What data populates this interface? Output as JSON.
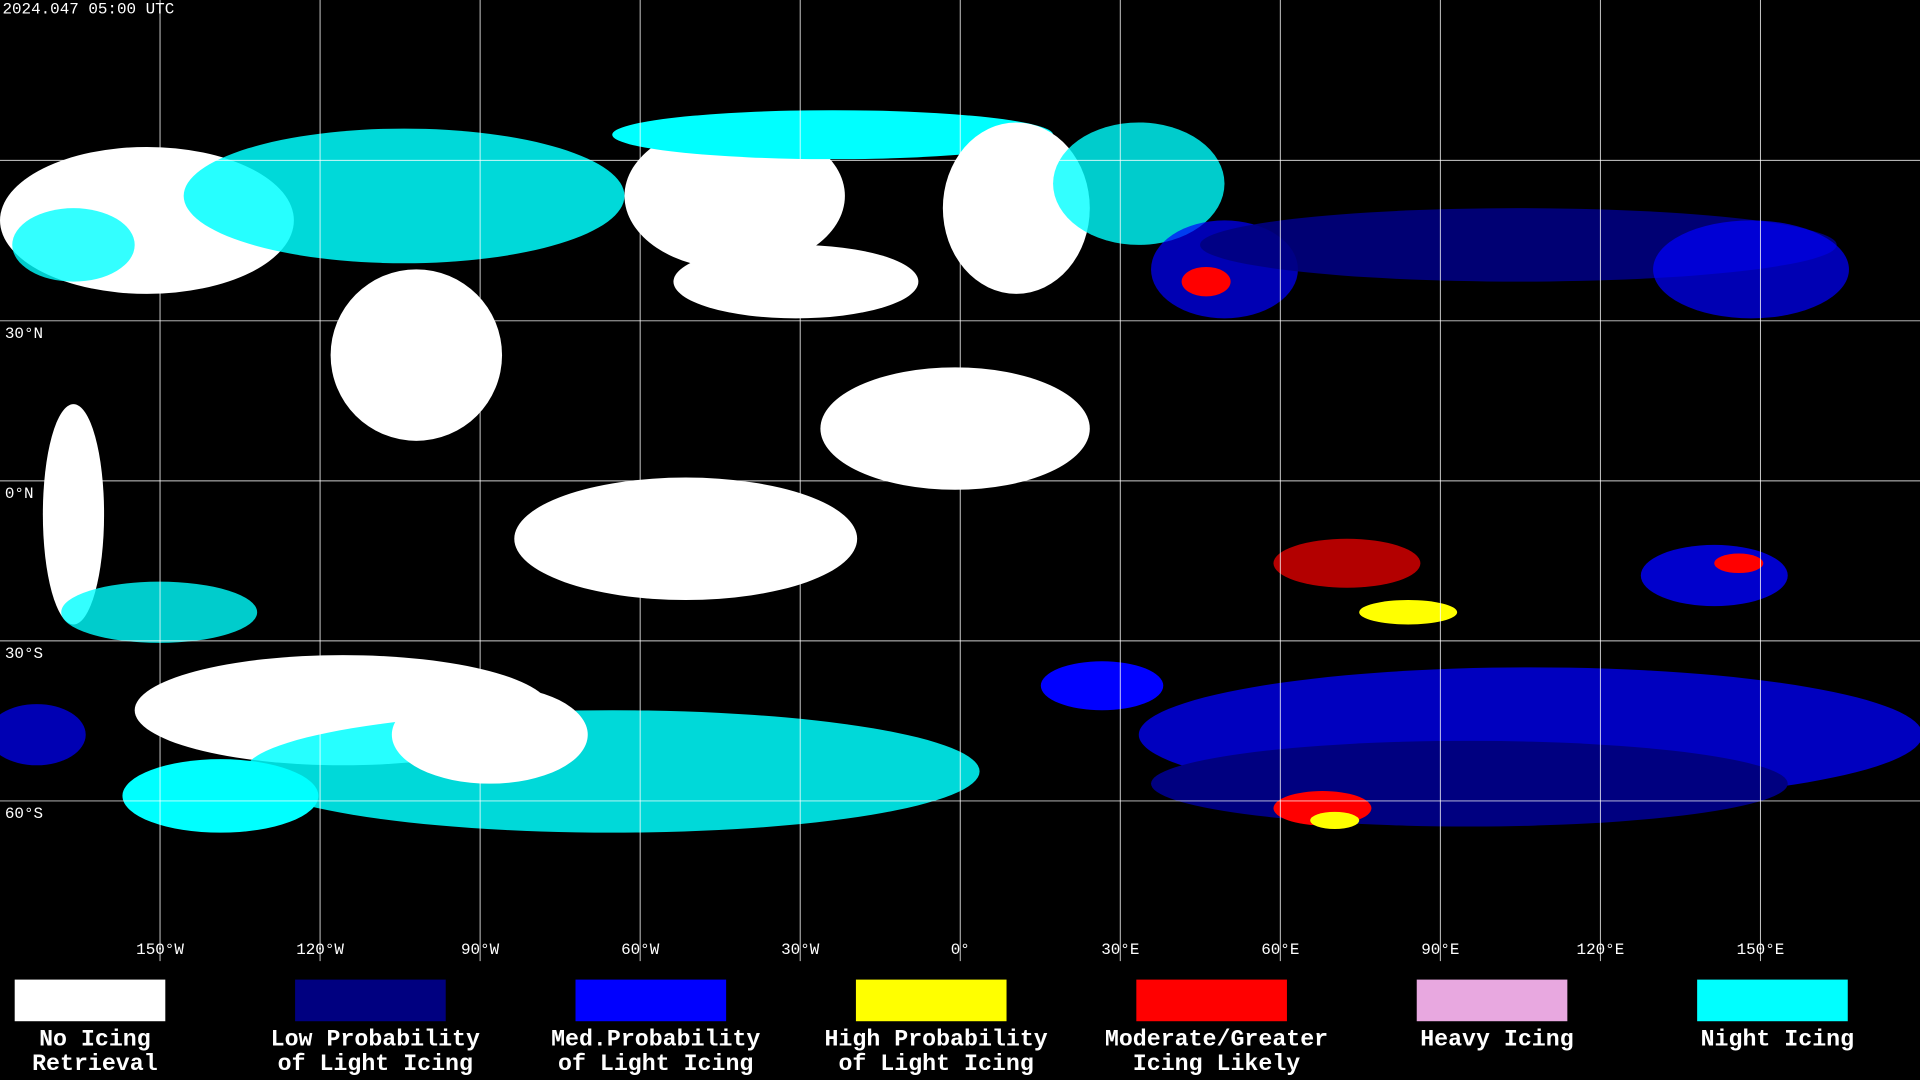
{
  "header": {
    "timestamp": "2024.047 05:00 UTC"
  },
  "latitude_labels": [
    "30°N",
    "0°N",
    "30°S",
    "60°S"
  ],
  "longitude_labels": [
    "150°W",
    "120°W",
    "90°W",
    "60°W",
    "30°W",
    "0°",
    "30°E",
    "60°E",
    "90°E",
    "120°E",
    "150°E"
  ],
  "legend": [
    {
      "color": "#ffffff",
      "lines": [
        "No Icing",
        "Retrieval"
      ]
    },
    {
      "color": "#000080",
      "lines": [
        "Low Probability",
        "of Light Icing"
      ]
    },
    {
      "color": "#0000ff",
      "lines": [
        "Med.Probability",
        "of Light Icing"
      ]
    },
    {
      "color": "#ffff00",
      "lines": [
        "High Probability",
        "of Light Icing"
      ]
    },
    {
      "color": "#ff0000",
      "lines": [
        "Moderate/Greater",
        "Icing Likely"
      ]
    },
    {
      "color": "#e8a8e0",
      "lines": [
        "Heavy Icing"
      ]
    },
    {
      "color": "#00ffff",
      "lines": [
        "Night Icing"
      ]
    }
  ]
}
